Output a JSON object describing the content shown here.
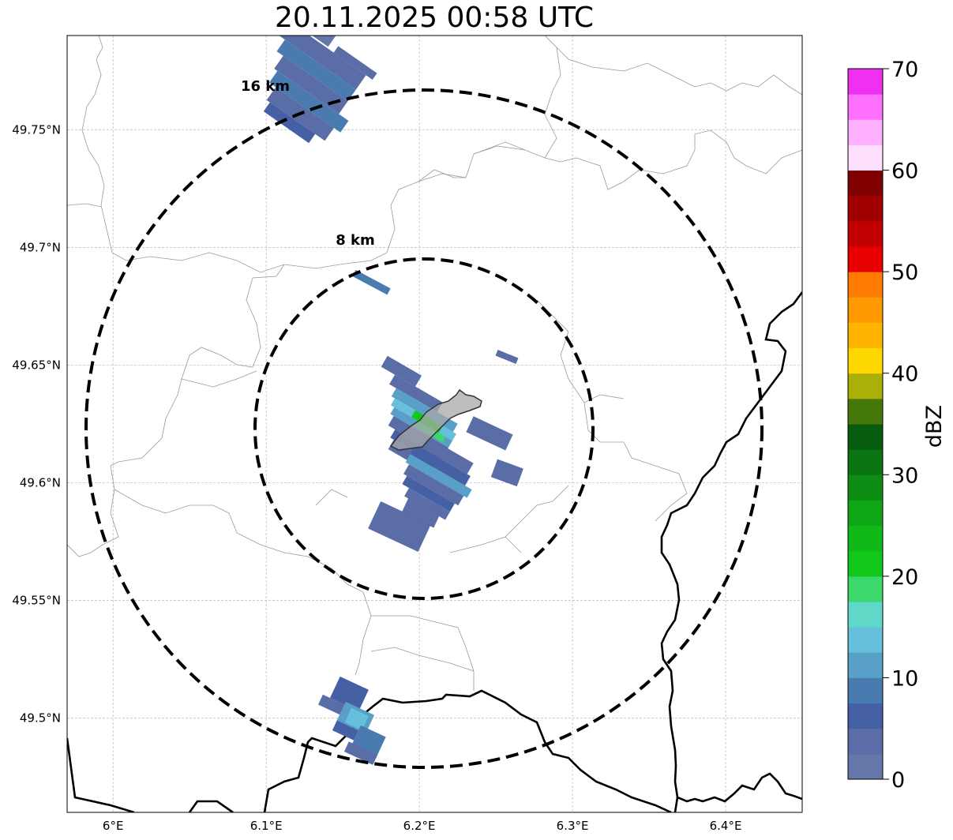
{
  "title": "20.11.2025 00:58 UTC",
  "map": {
    "lon_range": [
      5.97,
      6.45
    ],
    "lat_range": [
      49.46,
      49.79
    ],
    "lon_ticks": [
      {
        "value": 6.0,
        "label": "6°E"
      },
      {
        "value": 6.1,
        "label": "6.1°E"
      },
      {
        "value": 6.2,
        "label": "6.2°E"
      },
      {
        "value": 6.3,
        "label": "6.3°E"
      },
      {
        "value": 6.4,
        "label": "6.4°E"
      }
    ],
    "lat_ticks": [
      {
        "value": 49.5,
        "label": "49.5°N"
      },
      {
        "value": 49.55,
        "label": "49.55°N"
      },
      {
        "value": 49.6,
        "label": "49.6°N"
      },
      {
        "value": 49.65,
        "label": "49.65°N"
      },
      {
        "value": 49.7,
        "label": "49.7°N"
      },
      {
        "value": 49.75,
        "label": "49.75°N"
      }
    ],
    "gridlines": true,
    "center": {
      "lon": 6.203,
      "lat": 49.623
    },
    "range_rings": [
      {
        "label": "8 km",
        "radius_km": 8
      },
      {
        "label": "16 km",
        "radius_km": 16
      }
    ]
  },
  "colorbar": {
    "label": "dBZ",
    "min": 0,
    "max": 70,
    "ticks": [
      "0",
      "10",
      "20",
      "30",
      "40",
      "50",
      "60",
      "70"
    ],
    "colors": [
      "#6577a8",
      "#5a6da6",
      "#4560a5",
      "#4a7bb0",
      "#58a0c8",
      "#66c0dc",
      "#60d8c8",
      "#3cd86c",
      "#12c81a",
      "#10b818",
      "#0ea614",
      "#0c8c12",
      "#0a7410",
      "#065c0c",
      "#447808",
      "#aab008",
      "#ffd800",
      "#ffb400",
      "#ff9a00",
      "#ff7c00",
      "#e80000",
      "#c00000",
      "#a00000",
      "#800000",
      "#ffe0ff",
      "#ffb0ff",
      "#ff70ff",
      "#f030f0"
    ]
  },
  "radar_echoes": [
    {
      "lon": 6.205,
      "lat": 49.628,
      "dbz": 22
    },
    {
      "lon": 6.195,
      "lat": 49.632,
      "dbz": 14
    },
    {
      "lon": 6.21,
      "lat": 49.61,
      "dbz": 8
    },
    {
      "lon": 6.2,
      "lat": 49.585,
      "dbz": 3
    },
    {
      "lon": 6.17,
      "lat": 49.58,
      "dbz": 2
    },
    {
      "lon": 6.245,
      "lat": 49.62,
      "dbz": 2
    },
    {
      "lon": 6.255,
      "lat": 49.605,
      "dbz": 2
    },
    {
      "lon": 6.255,
      "lat": 49.655,
      "dbz": 4
    },
    {
      "lon": 6.17,
      "lat": 49.682,
      "dbz": 7
    },
    {
      "lon": 6.12,
      "lat": 49.77,
      "dbz": 5
    },
    {
      "lon": 6.16,
      "lat": 49.5,
      "dbz": 12
    },
    {
      "lon": 6.145,
      "lat": 49.505,
      "dbz": 6
    }
  ]
}
